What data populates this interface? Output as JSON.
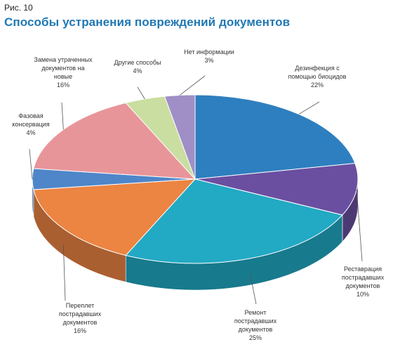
{
  "figure": {
    "number": "Рис. 10",
    "title": "Способы устранения повреждений документов"
  },
  "chart_data": {
    "type": "pie",
    "three_d": true,
    "title": "",
    "legend": "none",
    "slices": [
      {
        "label": [
          "Дезинфекция с",
          "помощью биоцидов"
        ],
        "value": 22,
        "value_label": "22%",
        "color": "#2e7fbf"
      },
      {
        "label": [
          "Реставрация",
          "пострадавших",
          "документов"
        ],
        "value": 10,
        "value_label": "10%",
        "color": "#6a4fa1"
      },
      {
        "label": [
          "Ремонт",
          "пострадавших",
          "документов"
        ],
        "value": 25,
        "value_label": "25%",
        "color": "#22a9c4"
      },
      {
        "label": [
          "Переплет",
          "пострадавших",
          "документов"
        ],
        "value": 16,
        "value_label": "16%",
        "color": "#ec8442"
      },
      {
        "label": [
          "Фазовая",
          "консервация"
        ],
        "value": 4,
        "value_label": "4%",
        "color": "#4f86c9"
      },
      {
        "label": [
          "Замена утраченных",
          "документов на",
          "новые"
        ],
        "value": 16,
        "value_label": "16%",
        "color": "#e8959a"
      },
      {
        "label": [
          "Другие способы"
        ],
        "value": 4,
        "value_label": "4%",
        "color": "#c9deA0"
      },
      {
        "label": [
          "Нет информации"
        ],
        "value": 3,
        "value_label": "3%",
        "color": "#9f8fc6"
      }
    ]
  }
}
